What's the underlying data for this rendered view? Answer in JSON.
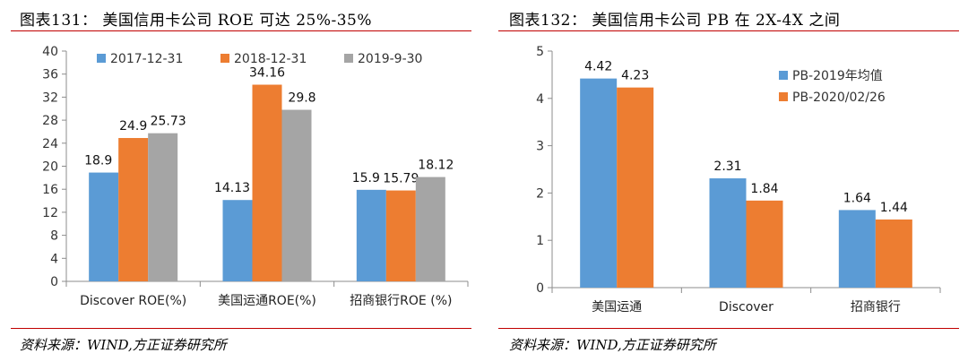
{
  "left": {
    "title": "图表131：  美国信用卡公司 ROE 可达 25%-35%",
    "source": "资料来源：WIND,方正证券研究所",
    "chart_data": {
      "type": "bar",
      "categories": [
        "Discover ROE(%)",
        "美国运通ROE(%)",
        "招商银行ROE (%)"
      ],
      "series": [
        {
          "name": "2017-12-31",
          "color": "#5b9bd5",
          "values": [
            18.9,
            14.13,
            15.9
          ],
          "labels": [
            "18.9",
            "14.13",
            "15.9"
          ]
        },
        {
          "name": "2018-12-31",
          "color": "#ed7d31",
          "values": [
            24.9,
            34.16,
            15.79
          ],
          "labels": [
            "24.9",
            "34.16",
            "15.79"
          ]
        },
        {
          "name": "2019-9-30",
          "color": "#a5a5a5",
          "values": [
            25.73,
            29.8,
            18.12
          ],
          "labels": [
            "25.73",
            "29.8",
            "18.12"
          ]
        }
      ],
      "ylim": [
        0,
        40
      ],
      "yticks": [
        "0",
        "4",
        "8",
        "12",
        "16",
        "20",
        "24",
        "28",
        "32",
        "36",
        "40"
      ],
      "legend": "top",
      "grid": false
    }
  },
  "right": {
    "title": "图表132：  美国信用卡公司 PB 在 2X-4X 之间",
    "source": "资料来源：WIND,方正证券研究所",
    "chart_data": {
      "type": "bar",
      "categories": [
        "美国运通",
        "Discover",
        "招商银行"
      ],
      "series": [
        {
          "name": "PB-2019年均值",
          "color": "#5b9bd5",
          "values": [
            4.42,
            2.31,
            1.64
          ],
          "labels": [
            "4.42",
            "2.31",
            "1.64"
          ]
        },
        {
          "name": "PB-2020/02/26",
          "color": "#ed7d31",
          "values": [
            4.23,
            1.84,
            1.44
          ],
          "labels": [
            "4.23",
            "1.84",
            "1.44"
          ]
        }
      ],
      "ylim": [
        0,
        5
      ],
      "yticks": [
        "0",
        "1",
        "2",
        "3",
        "4",
        "5"
      ],
      "legend": "right",
      "grid": false
    }
  }
}
